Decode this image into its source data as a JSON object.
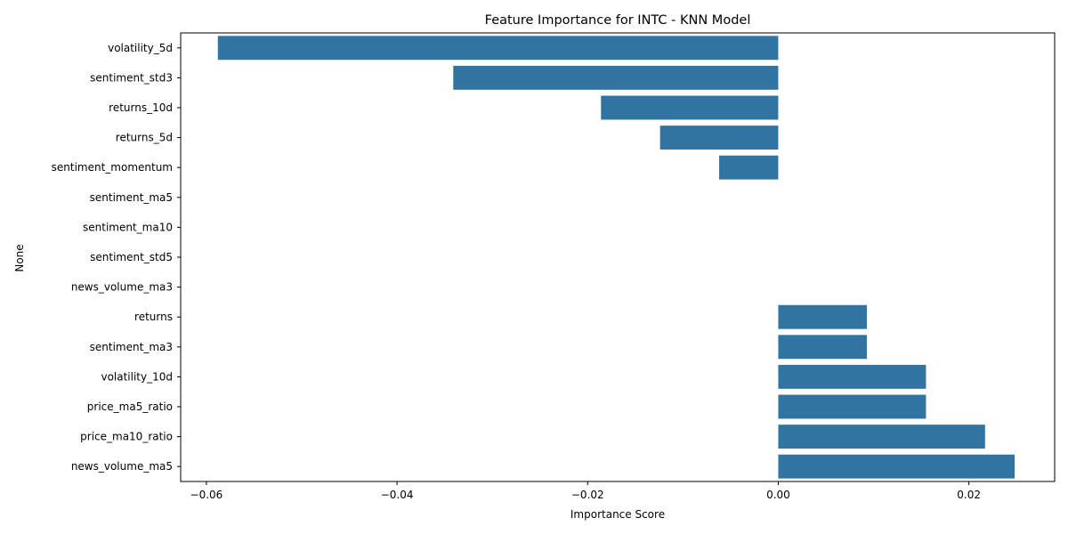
{
  "chart_data": {
    "type": "bar",
    "orientation": "horizontal",
    "title": "Feature Importance for INTC - KNN Model",
    "xlabel": "Importance Score",
    "ylabel": "None",
    "xlim": [
      -0.0627,
      0.029
    ],
    "xticks": [
      -0.06,
      -0.04,
      -0.02,
      0.0,
      0.02
    ],
    "xtick_labels": [
      "−0.06",
      "−0.04",
      "−0.02",
      "0.00",
      "0.02"
    ],
    "grid": false,
    "bar_color": "#3274a1",
    "categories": [
      "volatility_5d",
      "sentiment_std3",
      "returns_10d",
      "returns_5d",
      "sentiment_momentum",
      "sentiment_ma5",
      "sentiment_ma10",
      "sentiment_std5",
      "news_volume_ma3",
      "returns",
      "sentiment_ma3",
      "volatility_10d",
      "price_ma5_ratio",
      "price_ma10_ratio",
      "news_volume_ma5"
    ],
    "values": [
      -0.0588,
      -0.0341,
      -0.0186,
      -0.0124,
      -0.0062,
      0,
      0,
      0,
      0,
      0.0093,
      0.0093,
      0.0155,
      0.0155,
      0.0217,
      0.0248
    ]
  }
}
